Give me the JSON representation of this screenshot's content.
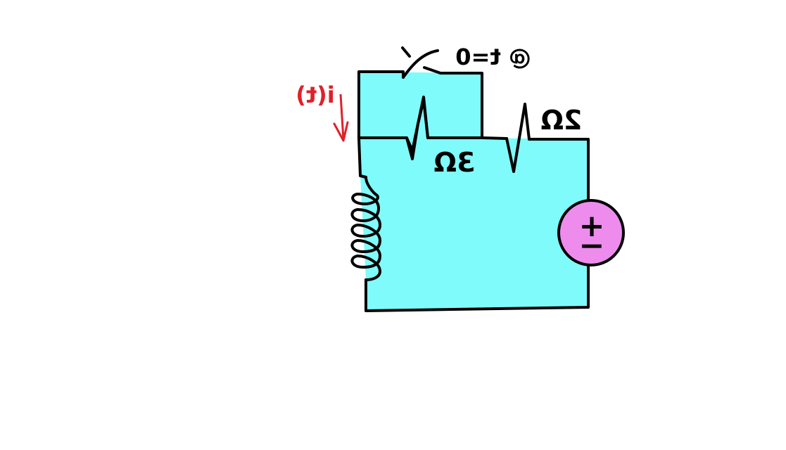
{
  "diagram": {
    "switch_label": "@ t=0",
    "current_label": "i(t)",
    "resistor_3_label": "3Ω",
    "resistor_2_label": "2Ω",
    "source_plus": "+",
    "source_minus": "−"
  },
  "colors": {
    "circuit_fill": "#80fbfb",
    "source_fill": "#ee8cee",
    "current_color": "#e0202a",
    "wire": "#000000"
  }
}
